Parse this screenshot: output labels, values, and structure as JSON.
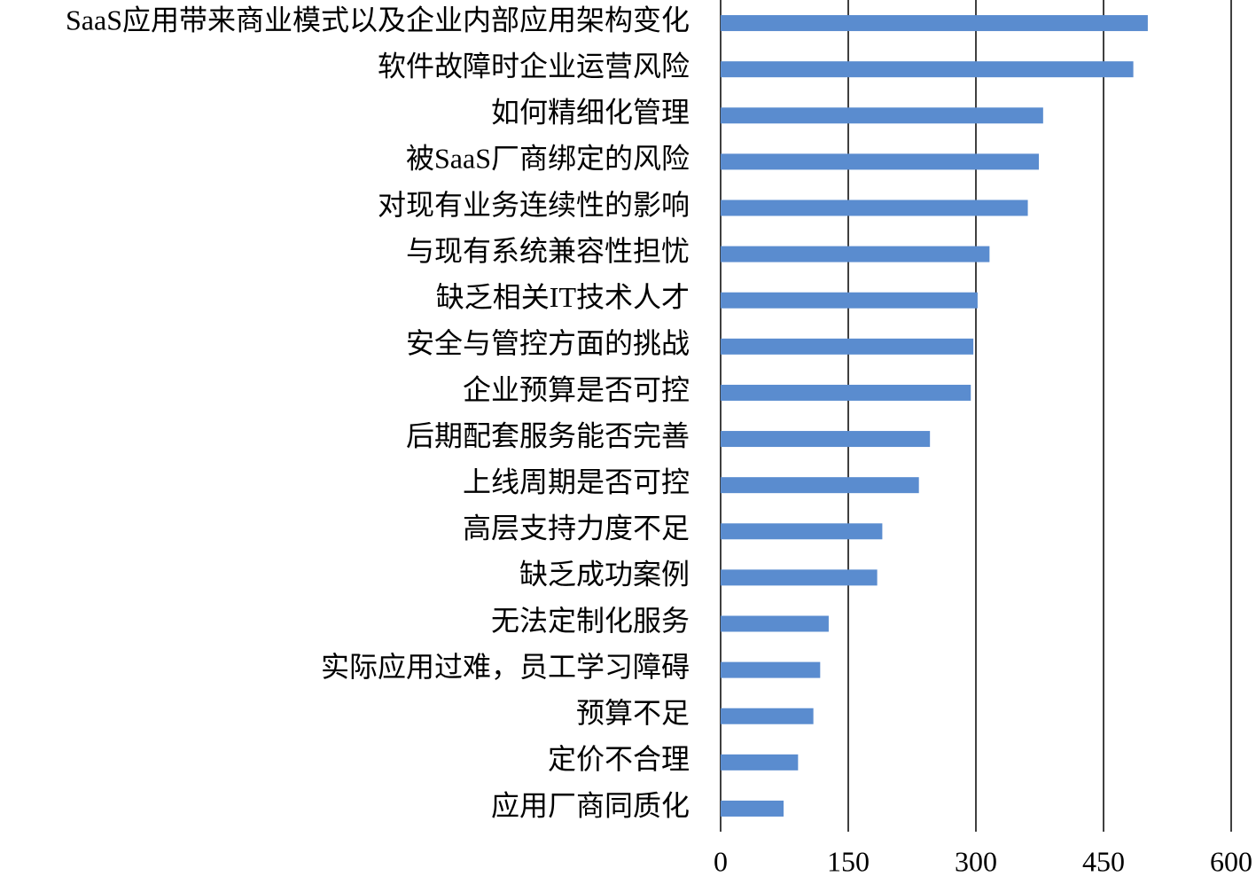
{
  "chart_data": {
    "type": "barh",
    "categories": [
      "SaaS应用带来商业模式以及企业内部应用架构变化",
      "软件故障时企业运营风险",
      "如何精细化管理",
      "被SaaS厂商绑定的风险",
      "对现有业务连续性的影响",
      "与现有系统兼容性担忧",
      "缺乏相关IT技术人才",
      "安全与管控方面的挑战",
      "企业预算是否可控",
      "后期配套服务能否完善",
      "上线周期是否可控",
      "高层支持力度不足",
      "缺乏成功案例",
      "无法定制化服务",
      "实际应用过难，员工学习障碍",
      "预算不足",
      "定价不合理",
      "应用厂商同质化"
    ],
    "values": [
      502,
      485,
      379,
      374,
      361,
      316,
      302,
      297,
      294,
      246,
      233,
      190,
      184,
      127,
      117,
      109,
      91,
      74
    ],
    "color": "#5a8ccf",
    "xlim": [
      0,
      600
    ],
    "xticks": [
      0,
      150,
      300,
      450,
      600
    ],
    "grid": true
  }
}
